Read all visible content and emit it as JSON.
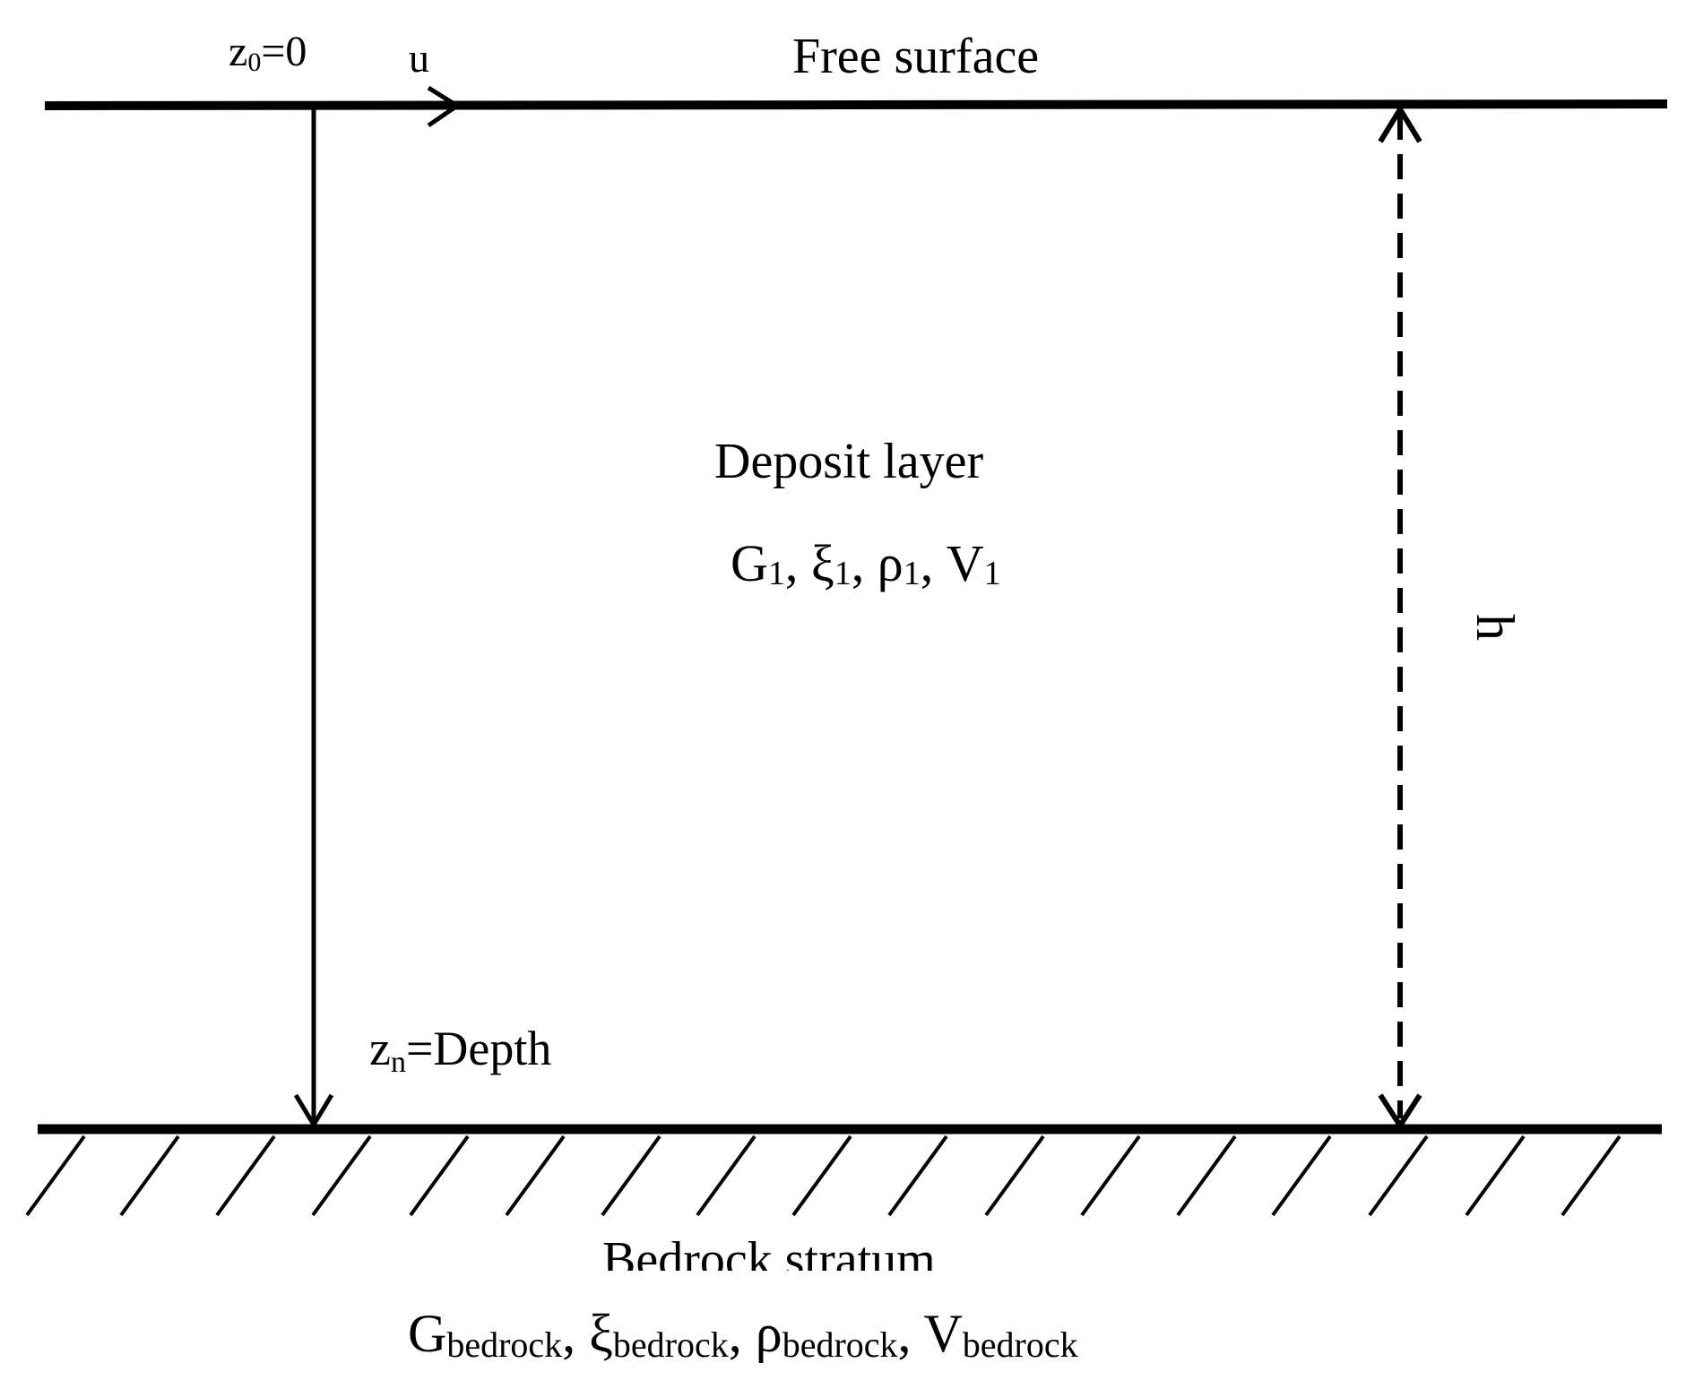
{
  "diagram": {
    "surface": {
      "label": "Free surface",
      "z0_var": "z",
      "z0_sub": "0",
      "z0_rest": "=0",
      "u_label": "u"
    },
    "layer": {
      "name": "Deposit layer",
      "params": [
        {
          "sym": "G",
          "sub": "1",
          "sep": ", "
        },
        {
          "sym": "ξ",
          "sub": "1",
          "sep": ", "
        },
        {
          "sym": "ρ",
          "sub": "1",
          "sep": ", "
        },
        {
          "sym": "V",
          "sub": "1",
          "sep": ""
        }
      ]
    },
    "depth": {
      "var": "z",
      "sub": "n",
      "rest": "=Depth"
    },
    "thickness_label": "h",
    "bedrock": {
      "name": "Bedrock stratum",
      "params": [
        {
          "sym": "G",
          "sub": "bedrock",
          "sep": ", "
        },
        {
          "sym": "ξ",
          "sub": "bedrock",
          "sep": ", "
        },
        {
          "sym": "ρ",
          "sub": "bedrock",
          "sep": ", "
        },
        {
          "sym": "V",
          "sub": "bedrock",
          "sep": ""
        }
      ]
    }
  }
}
